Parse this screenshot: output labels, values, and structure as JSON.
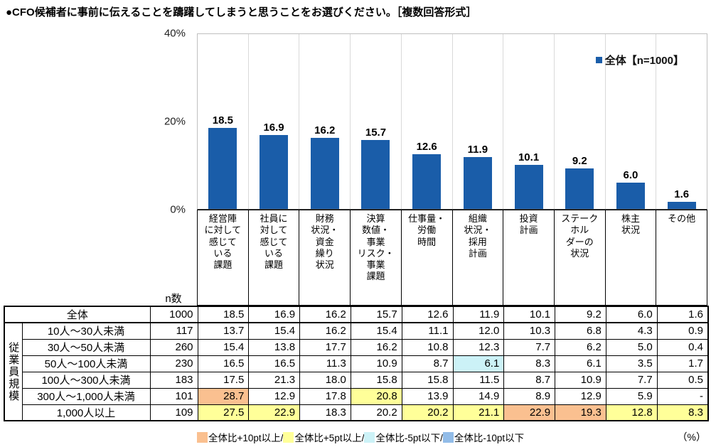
{
  "title": "●CFO候補者に事前に伝えることを躊躇してしまうと思うことをお選びください。［複数回答形式］",
  "chart_data": {
    "type": "bar",
    "title": "CFO候補者に事前に伝えることを躊躇してしまうと思うこと",
    "categories": [
      "経営陣に対して感じている課題",
      "社員に対して感じている課題",
      "財務状況・資金繰り状況",
      "決算数値・事業リスク・事業課題",
      "仕事量・労働時間",
      "組織状況・採用計画",
      "投資計画",
      "ステークホルダーの状況",
      "株主状況",
      "その他"
    ],
    "category_display": [
      "経営陣\nに対して\n感じて\nいる\n課題",
      "社員に\n対して\n感じて\nいる\n課題",
      "財務\n状況・\n資金\n繰り\n状況",
      "決算\n数値・\n事業\nリスク・\n事業\n課題",
      "仕事量・\n労働\n時間",
      "組織\n状況・\n採用\n計画",
      "投資\n計画",
      "ステーク\nホル\nダーの\n状況",
      "株主\n状況",
      "その他"
    ],
    "values": [
      18.5,
      16.9,
      16.2,
      15.7,
      12.6,
      11.9,
      10.1,
      9.2,
      6.0,
      1.6
    ],
    "ylim": [
      0,
      40
    ],
    "yticks": [
      "40%",
      "20%",
      "0%"
    ],
    "legend": "全体【n=1000】",
    "legend_position": "top-right",
    "grid": "vertical-only",
    "bar_color": "#1a5da9",
    "unit": "%"
  },
  "table": {
    "n_header": "n数",
    "group_label": "従業員規模",
    "highlight_colors": {
      "plus10": "#FAC090",
      "plus5": "#FFFF99",
      "minus5": "#CCF2F7",
      "minus10": "#92BCE8"
    },
    "overall_row": {
      "label": "全体",
      "n": "1000",
      "values": [
        "18.5",
        "16.9",
        "16.2",
        "15.7",
        "12.6",
        "11.9",
        "10.1",
        "9.2",
        "6.0",
        "1.6"
      ],
      "highlights": [
        null,
        null,
        null,
        null,
        null,
        null,
        null,
        null,
        null,
        null
      ]
    },
    "rows": [
      {
        "label": "10人〜30人未満",
        "n": "117",
        "values": [
          "13.7",
          "15.4",
          "16.2",
          "15.4",
          "11.1",
          "12.0",
          "10.3",
          "6.8",
          "4.3",
          "0.9"
        ],
        "highlights": [
          null,
          null,
          null,
          null,
          null,
          null,
          null,
          null,
          null,
          null
        ]
      },
      {
        "label": "30人〜50人未満",
        "n": "260",
        "values": [
          "15.4",
          "13.8",
          "17.7",
          "16.2",
          "10.8",
          "12.3",
          "7.7",
          "6.2",
          "5.0",
          "0.4"
        ],
        "highlights": [
          null,
          null,
          null,
          null,
          null,
          null,
          null,
          null,
          null,
          null
        ]
      },
      {
        "label": "50人〜100人未満",
        "n": "230",
        "values": [
          "16.5",
          "16.5",
          "11.3",
          "10.9",
          "8.7",
          "6.1",
          "8.3",
          "6.1",
          "3.5",
          "1.7"
        ],
        "highlights": [
          null,
          null,
          null,
          null,
          null,
          "minus5",
          null,
          null,
          null,
          null
        ]
      },
      {
        "label": "100人〜300人未満",
        "n": "183",
        "values": [
          "17.5",
          "21.3",
          "18.0",
          "15.8",
          "15.8",
          "11.5",
          "8.7",
          "10.9",
          "7.7",
          "0.5"
        ],
        "highlights": [
          null,
          null,
          null,
          null,
          null,
          null,
          null,
          null,
          null,
          null
        ]
      },
      {
        "label": "300人〜1,000人未満",
        "n": "101",
        "values": [
          "28.7",
          "12.9",
          "17.8",
          "20.8",
          "13.9",
          "14.9",
          "8.9",
          "12.9",
          "5.9",
          "-"
        ],
        "highlights": [
          "plus10",
          null,
          null,
          "plus5",
          null,
          null,
          null,
          null,
          null,
          null
        ]
      },
      {
        "label": "1,000人以上",
        "n": "109",
        "values": [
          "27.5",
          "22.9",
          "18.3",
          "20.2",
          "20.2",
          "21.1",
          "22.9",
          "19.3",
          "12.8",
          "8.3"
        ],
        "highlights": [
          "plus5",
          "plus5",
          null,
          null,
          "plus5",
          "plus5",
          "plus10",
          "plus10",
          "plus5",
          "plus5"
        ]
      }
    ]
  },
  "legend_notes": [
    {
      "color_key": "plus10",
      "label": "全体比+10pt以上/"
    },
    {
      "color_key": "plus5",
      "label": "全体比+5pt以上/"
    },
    {
      "color_key": "minus5",
      "label": "全体比-5pt以下/"
    },
    {
      "color_key": "minus10",
      "label": "全体比-10pt以下"
    }
  ],
  "unit_label": "（%）"
}
